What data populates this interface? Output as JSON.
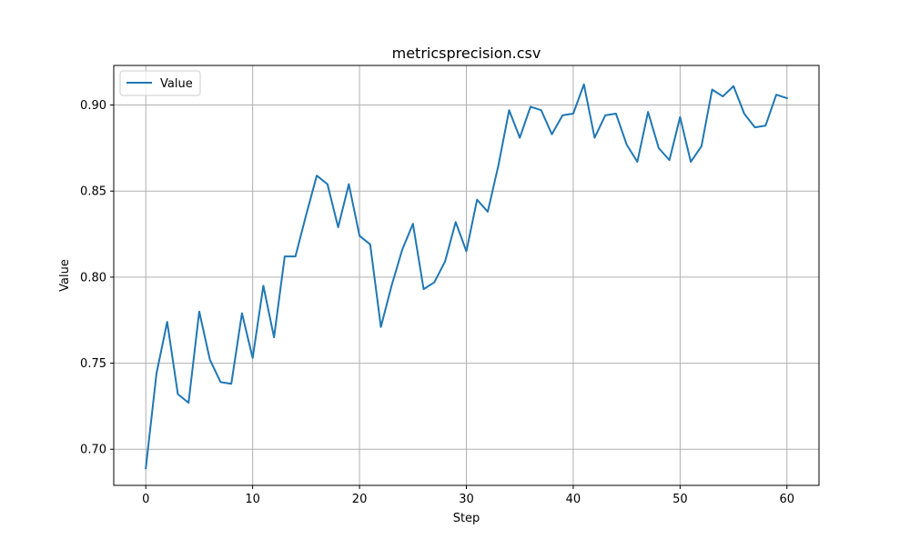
{
  "chart_data": {
    "type": "line",
    "title": "metricsprecision.csv",
    "xlabel": "Step",
    "ylabel": "Value",
    "xlim": [
      -3,
      63
    ],
    "ylim": [
      0.679,
      0.923
    ],
    "xticks": [
      0,
      10,
      20,
      30,
      40,
      50,
      60
    ],
    "yticks": [
      0.7,
      0.75,
      0.8,
      0.85,
      0.9
    ],
    "ytick_labels": [
      "0.70",
      "0.75",
      "0.80",
      "0.85",
      "0.90"
    ],
    "xtick_labels": [
      "0",
      "10",
      "20",
      "30",
      "40",
      "50",
      "60"
    ],
    "grid": true,
    "legend_position": "upper-left",
    "series": [
      {
        "name": "Value",
        "color": "#1f77b4",
        "x": [
          0,
          1,
          2,
          3,
          4,
          5,
          6,
          7,
          8,
          9,
          10,
          11,
          12,
          13,
          14,
          15,
          16,
          17,
          18,
          19,
          20,
          21,
          22,
          23,
          24,
          25,
          26,
          27,
          28,
          29,
          30,
          31,
          32,
          33,
          34,
          35,
          36,
          37,
          38,
          39,
          40,
          41,
          42,
          43,
          44,
          45,
          46,
          47,
          48,
          49,
          50,
          51,
          52,
          53,
          54,
          55,
          56,
          57,
          58,
          59,
          60
        ],
        "y": [
          0.689,
          0.744,
          0.774,
          0.732,
          0.727,
          0.78,
          0.752,
          0.739,
          0.738,
          0.779,
          0.753,
          0.795,
          0.765,
          0.812,
          0.812,
          0.836,
          0.859,
          0.854,
          0.829,
          0.854,
          0.824,
          0.819,
          0.771,
          0.795,
          0.816,
          0.831,
          0.793,
          0.797,
          0.809,
          0.832,
          0.815,
          0.845,
          0.838,
          0.865,
          0.897,
          0.881,
          0.899,
          0.897,
          0.883,
          0.894,
          0.895,
          0.912,
          0.881,
          0.894,
          0.895,
          0.877,
          0.867,
          0.896,
          0.875,
          0.868,
          0.893,
          0.867,
          0.876,
          0.909,
          0.905,
          0.911,
          0.895,
          0.887,
          0.888,
          0.906,
          0.904
        ]
      }
    ]
  }
}
